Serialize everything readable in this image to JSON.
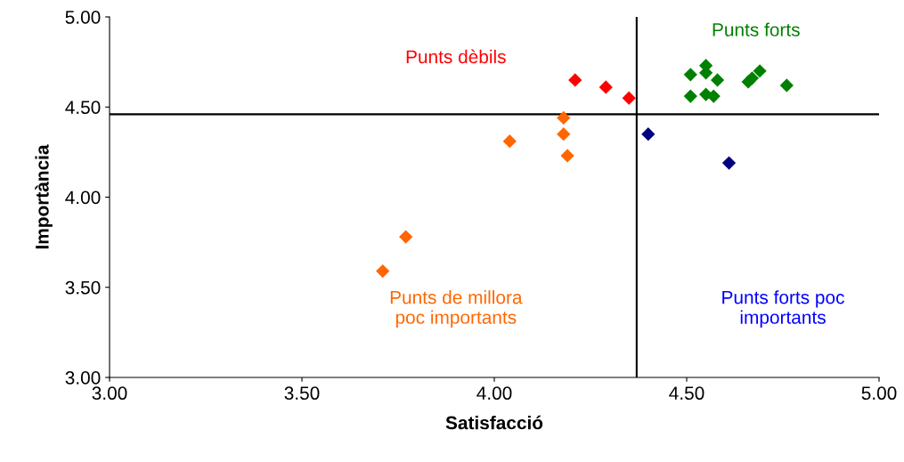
{
  "chart_data": {
    "type": "scatter",
    "xlabel": "Satisfacció",
    "ylabel": "Importància",
    "marker": "diamond",
    "grid": false,
    "legend": false,
    "xlim": [
      3,
      5
    ],
    "ylim": [
      3,
      5
    ],
    "xticks": [
      {
        "value": 3,
        "label": "3.00"
      },
      {
        "value": 3.5,
        "label": "3.50"
      },
      {
        "value": 4,
        "label": "4.00"
      },
      {
        "value": 4.5,
        "label": "4.50"
      },
      {
        "value": 5,
        "label": "5.00"
      }
    ],
    "yticks": [
      {
        "value": 3,
        "label": "3.00"
      },
      {
        "value": 3.5,
        "label": "3.50"
      },
      {
        "value": 4,
        "label": "4.00"
      },
      {
        "value": 4.5,
        "label": "4.50"
      },
      {
        "value": 5,
        "label": "5.00"
      }
    ],
    "series": [
      {
        "color": "#ff0000",
        "x": [
          4.21,
          4.29,
          4.35
        ],
        "values": [
          4.65,
          4.61,
          4.55
        ]
      },
      {
        "color": "#ff6600",
        "x": [
          4.18,
          4.18,
          4.04,
          4.19,
          3.77,
          3.71
        ],
        "values": [
          4.44,
          4.35,
          4.31,
          4.23,
          3.78,
          3.59
        ]
      },
      {
        "color": "#000080",
        "x": [
          4.4,
          4.61
        ],
        "values": [
          4.35,
          4.19
        ]
      },
      {
        "color": "#008000",
        "x": [
          4.51,
          4.55,
          4.55,
          4.58,
          4.51,
          4.55,
          4.57,
          4.66,
          4.67,
          4.69,
          4.76
        ],
        "values": [
          4.68,
          4.73,
          4.69,
          4.65,
          4.56,
          4.57,
          4.56,
          4.64,
          4.66,
          4.7,
          4.62
        ]
      }
    ],
    "ref_lines": [
      {
        "axis": "y",
        "value": 4.46,
        "color": "#000000"
      },
      {
        "axis": "x",
        "value": 4.37,
        "color": "#000000"
      }
    ],
    "annotations": [
      "Punts dèbils",
      "Punts de millora\npoc importants",
      "Punts forts poc\nimportants",
      "Punts forts"
    ]
  }
}
